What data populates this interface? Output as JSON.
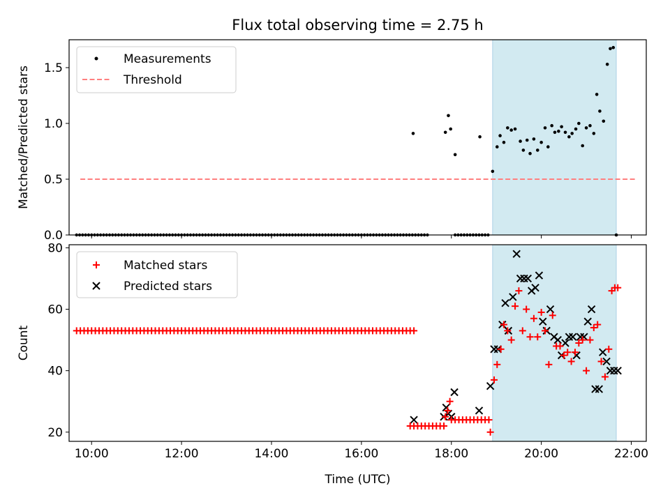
{
  "chart_data": [
    {
      "type": "scatter",
      "title": "Flux total observing time = 2.75 h",
      "xlabel": "",
      "ylabel": "Matched/Predicted stars",
      "xlim": [
        "09:30",
        "22:20"
      ],
      "ylim": [
        0,
        1.75
      ],
      "yticks": [
        "0.0",
        "0.5",
        "1.0",
        "1.5"
      ],
      "grid": false,
      "legend_position": "top-left",
      "observing_window": [
        "18:55",
        "21:40"
      ],
      "colors": {
        "measurements": "#000000",
        "threshold": "#ff7f7f",
        "window": "#add8e6"
      },
      "threshold": {
        "name": "Threshold",
        "value": 0.5,
        "x": [
          "09:45",
          "22:05"
        ]
      },
      "series": [
        {
          "name": "Measurements",
          "x": [
            "17:09",
            "17:52",
            "17:56",
            "17:59",
            "18:05",
            "18:38",
            "18:55",
            "19:01",
            "19:05",
            "19:10",
            "19:15",
            "19:20",
            "19:25",
            "19:32",
            "19:36",
            "19:41",
            "19:45",
            "19:50",
            "19:55",
            "20:00",
            "20:05",
            "20:09",
            "20:14",
            "20:18",
            "20:23",
            "20:27",
            "20:32",
            "20:37",
            "20:41",
            "20:46",
            "20:50",
            "20:55",
            "21:00",
            "21:05",
            "21:10",
            "21:14",
            "21:18",
            "21:23",
            "21:28",
            "21:32",
            "21:36",
            "21:40"
          ],
          "y": [
            0.91,
            0.92,
            1.07,
            0.95,
            0.72,
            0.88,
            0.57,
            0.79,
            0.89,
            0.83,
            0.96,
            0.94,
            0.95,
            0.84,
            0.76,
            0.85,
            0.73,
            0.86,
            0.76,
            0.83,
            0.96,
            0.79,
            0.98,
            0.92,
            0.93,
            0.97,
            0.92,
            0.88,
            0.91,
            0.95,
            1.0,
            0.8,
            0.96,
            0.98,
            0.91,
            1.26,
            1.11,
            1.02,
            1.53,
            1.67,
            1.68,
            0.0
          ],
          "zero_values_note": ""
        }
      ]
    },
    {
      "type": "scatter",
      "title": "",
      "xlabel": "Time (UTC)",
      "ylabel": "Count",
      "xlim": [
        "09:30",
        "22:20"
      ],
      "ylim": [
        17,
        81
      ],
      "xticks": [
        "10:00",
        "12:00",
        "14:00",
        "16:00",
        "18:00",
        "20:00",
        "22:00"
      ],
      "yticks": [
        "20",
        "40",
        "60",
        "80"
      ],
      "grid": false,
      "legend_position": "top-left",
      "observing_window": [
        "18:55",
        "21:40"
      ],
      "colors": {
        "matched": "#ff0000",
        "predicted": "#000000",
        "window": "#add8e6"
      },
      "series": [
        {
          "name": "Matched stars",
          "flat_runs": [
            {
              "x_start": "09:40",
              "x_end": "17:10",
              "step_min": 5,
              "y": 53
            },
            {
              "x_start": "17:05",
              "x_end": "17:50",
              "step_min": 5,
              "y": 22
            },
            {
              "x_start": "18:00",
              "x_end": "18:50",
              "step_min": 5,
              "y": 24
            }
          ],
          "x": [
            "17:52",
            "17:55",
            "17:58",
            "18:52",
            "18:57",
            "19:01",
            "19:06",
            "19:10",
            "19:15",
            "19:20",
            "19:25",
            "19:30",
            "19:35",
            "19:40",
            "19:45",
            "19:50",
            "19:55",
            "20:00",
            "20:05",
            "20:10",
            "20:15",
            "20:20",
            "20:25",
            "20:30",
            "20:35",
            "20:40",
            "20:45",
            "20:50",
            "20:55",
            "21:00",
            "21:05",
            "21:10",
            "21:15",
            "21:20",
            "21:25",
            "21:30",
            "21:34",
            "21:38",
            "21:42"
          ],
          "y": [
            25,
            27,
            30,
            20,
            37,
            42,
            47,
            55,
            53,
            50,
            61,
            66,
            53,
            60,
            51,
            57,
            51,
            59,
            53,
            42,
            58,
            48,
            48,
            45,
            46,
            43,
            46,
            49,
            50,
            40,
            50,
            54,
            55,
            43,
            38,
            47,
            66,
            67,
            67
          ]
        },
        {
          "name": "Predicted stars",
          "x": [
            "17:10",
            "17:50",
            "17:53",
            "17:56",
            "18:00",
            "18:04",
            "18:37",
            "18:52",
            "18:57",
            "19:02",
            "19:08",
            "19:12",
            "19:16",
            "19:22",
            "19:27",
            "19:32",
            "19:37",
            "19:42",
            "19:47",
            "19:52",
            "19:57",
            "20:02",
            "20:07",
            "20:12",
            "20:17",
            "20:22",
            "20:27",
            "20:32",
            "20:37",
            "20:42",
            "20:47",
            "20:52",
            "20:57",
            "21:02",
            "21:07",
            "21:12",
            "21:17",
            "21:22",
            "21:27",
            "21:32",
            "21:37",
            "21:42"
          ],
          "y": [
            24,
            25,
            28,
            26,
            25,
            33,
            27,
            35,
            47,
            47,
            55,
            62,
            53,
            64,
            78,
            70,
            70,
            70,
            66,
            67,
            71,
            56,
            53,
            60,
            51,
            50,
            45,
            49,
            51,
            51,
            45,
            51,
            51,
            56,
            60,
            34,
            34,
            46,
            43,
            40,
            40,
            40
          ]
        }
      ]
    }
  ]
}
